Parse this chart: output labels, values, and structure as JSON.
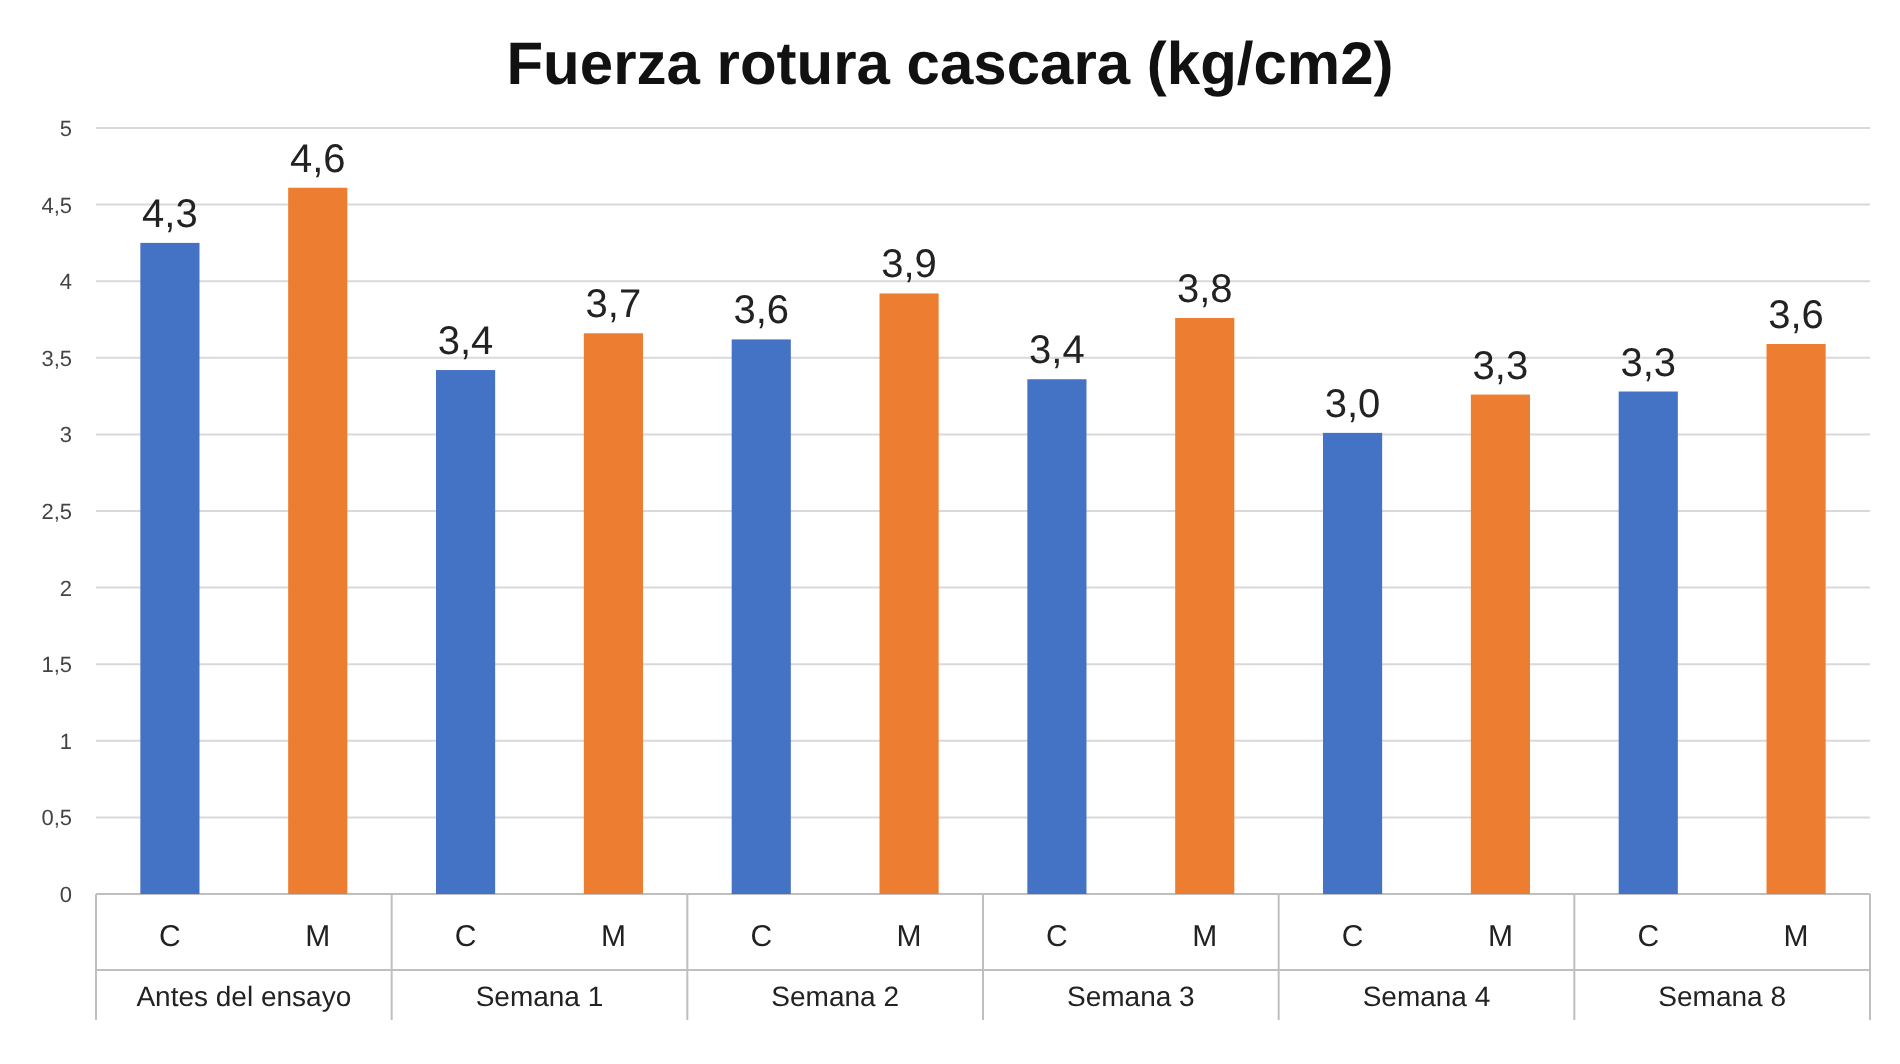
{
  "chart_data": {
    "type": "bar",
    "title": "Fuerza rotura cascara (kg/cm2)",
    "categories": [
      "C",
      "M",
      "C",
      "M",
      "C",
      "M",
      "C",
      "M",
      "C",
      "M",
      "C",
      "M"
    ],
    "values": [
      4.25,
      4.61,
      3.42,
      3.66,
      3.62,
      3.92,
      3.36,
      3.76,
      3.01,
      3.26,
      3.28,
      3.59
    ],
    "colors": [
      "#4472c4",
      "#ed7d31",
      "#4472c4",
      "#ed7d31",
      "#4472c4",
      "#ed7d31",
      "#4472c4",
      "#ed7d31",
      "#4472c4",
      "#ed7d31",
      "#4472c4",
      "#ed7d31"
    ],
    "value_labels": [
      "4,3",
      "4,6",
      "3,4",
      "3,7",
      "3,6",
      "3,9",
      "3,4",
      "3,8",
      "3,0",
      "3,3",
      "3,3",
      "3,6"
    ],
    "annotations": [
      "Antes del ensayo",
      "Semana 1",
      "Semana 2",
      "Semana 3",
      "Semana 4",
      "Semana 8"
    ],
    "ylim": [
      0,
      5
    ],
    "yticks": [
      0,
      {
        "value": 0.5,
        "label": "0,5"
      },
      1,
      {
        "value": 1.5,
        "label": "1,5"
      },
      2,
      {
        "value": 2.5,
        "label": "2,5"
      },
      3,
      {
        "value": 3.5,
        "label": "3,5"
      },
      4,
      {
        "value": 4.5,
        "label": "4,5"
      },
      5
    ],
    "grid": "y"
  }
}
